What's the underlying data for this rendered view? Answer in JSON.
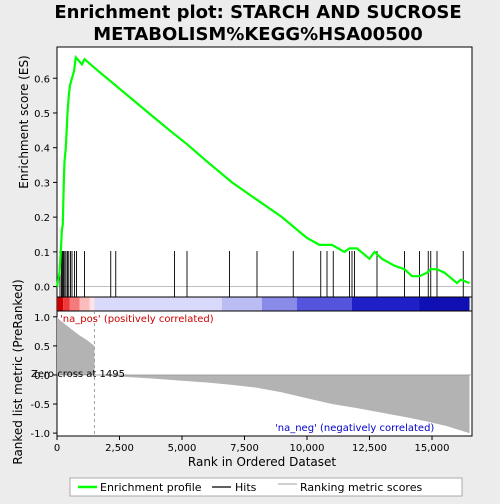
{
  "title_line1": "Enrichment plot: STARCH AND SUCROSE",
  "title_line2": "METABOLISM%KEGG%HSA00500",
  "colors": {
    "enrichment_line": "#00ff00",
    "hit_line": "#000000",
    "metric_fill": "#b3b3b3",
    "pos_label": "#cc0000",
    "neg_label": "#0000cc",
    "panel_bg": "#ffffff",
    "page_bg": "#ececec"
  },
  "chart_data": {
    "type": "line",
    "x_max": 16600,
    "xlabel": "Rank in Ordered Dataset",
    "x_ticks": [
      0,
      2500,
      5000,
      7500,
      10000,
      12500,
      15000
    ],
    "x_tick_labels": [
      "0",
      "2,500",
      "5,000",
      "7,500",
      "10,000",
      "12,500",
      "15,000"
    ],
    "es_panel": {
      "ylabel": "Enrichment score (ES)",
      "ylim": [
        -0.03,
        0.69
      ],
      "y_ticks": [
        0.0,
        0.1,
        0.2,
        0.3,
        0.4,
        0.5,
        0.6
      ],
      "y_tick_labels": [
        "0.0",
        "0.1",
        "0.2",
        "0.3",
        "0.4",
        "0.5",
        "0.6"
      ],
      "grid": false,
      "series": [
        {
          "name": "Enrichment profile",
          "points": [
            [
              0,
              0.0
            ],
            [
              100,
              0.04
            ],
            [
              150,
              0.1
            ],
            [
              190,
              0.16
            ],
            [
              230,
              0.18
            ],
            [
              270,
              0.3
            ],
            [
              300,
              0.36
            ],
            [
              350,
              0.4
            ],
            [
              420,
              0.5
            ],
            [
              470,
              0.55
            ],
            [
              520,
              0.58
            ],
            [
              600,
              0.6
            ],
            [
              680,
              0.62
            ],
            [
              750,
              0.66
            ],
            [
              1000,
              0.64
            ],
            [
              1100,
              0.655
            ],
            [
              1500,
              0.63
            ],
            [
              3000,
              0.54
            ],
            [
              4500,
              0.45
            ],
            [
              5200,
              0.41
            ],
            [
              6000,
              0.36
            ],
            [
              7000,
              0.3
            ],
            [
              8000,
              0.25
            ],
            [
              9000,
              0.2
            ],
            [
              9500,
              0.17
            ],
            [
              10000,
              0.14
            ],
            [
              10500,
              0.12
            ],
            [
              11000,
              0.12
            ],
            [
              11500,
              0.1
            ],
            [
              11700,
              0.11
            ],
            [
              11850,
              0.11
            ],
            [
              12000,
              0.11
            ],
            [
              12500,
              0.08
            ],
            [
              12700,
              0.1
            ],
            [
              13000,
              0.08
            ],
            [
              13500,
              0.06
            ],
            [
              13900,
              0.05
            ],
            [
              14200,
              0.03
            ],
            [
              14500,
              0.03
            ],
            [
              14800,
              0.04
            ],
            [
              14950,
              0.05
            ],
            [
              15200,
              0.05
            ],
            [
              15500,
              0.04
            ],
            [
              16000,
              0.01
            ],
            [
              16150,
              0.02
            ],
            [
              16500,
              0.01
            ]
          ]
        }
      ]
    },
    "hits": [
      120,
      180,
      220,
      260,
      310,
      360,
      420,
      470,
      540,
      600,
      700,
      780,
      1100,
      2150,
      2350,
      4700,
      5200,
      6900,
      8000,
      9450,
      10550,
      10800,
      11050,
      11700,
      11800,
      11900,
      12800,
      13900,
      14500,
      14850,
      14950,
      15200,
      16250
    ],
    "metric_panel": {
      "ylabel": "Ranked list metric (PreRanked)",
      "ylim": [
        -1.05,
        1.1
      ],
      "y_ticks": [
        1.0,
        0.5,
        0.0,
        -0.5,
        -1.0
      ],
      "y_tick_labels": [
        "1.0",
        "0.5",
        "0.0",
        "-0.5",
        "-1.0"
      ],
      "metric_profile": [
        [
          0,
          1.0
        ],
        [
          100,
          0.95
        ],
        [
          300,
          0.88
        ],
        [
          600,
          0.78
        ],
        [
          900,
          0.68
        ],
        [
          1200,
          0.6
        ],
        [
          1495,
          0.5
        ],
        [
          1500,
          0.0
        ],
        [
          2600,
          -0.03
        ],
        [
          3800,
          -0.06
        ],
        [
          5000,
          -0.1
        ],
        [
          6000,
          -0.13
        ],
        [
          7000,
          -0.17
        ],
        [
          8000,
          -0.22
        ],
        [
          9000,
          -0.3
        ],
        [
          10000,
          -0.4
        ],
        [
          11000,
          -0.5
        ],
        [
          12000,
          -0.57
        ],
        [
          13000,
          -0.65
        ],
        [
          14000,
          -0.73
        ],
        [
          14800,
          -0.8
        ],
        [
          15600,
          -0.88
        ],
        [
          16100,
          -0.95
        ],
        [
          16500,
          -1.0
        ]
      ],
      "pos_label": "'na_pos' (positively correlated)",
      "neg_label": "'na_neg' (negatively correlated)",
      "zero_cross_label": "Zero cross at 1495",
      "zero_cross_rank": 1495
    },
    "rank_bar": {
      "segments": [
        {
          "end": 250,
          "color": "#cc0000"
        },
        {
          "end": 500,
          "color": "#ee3a3a"
        },
        {
          "end": 900,
          "color": "#f57a7a"
        },
        {
          "end": 1300,
          "color": "#fbbcbc"
        },
        {
          "end": 1500,
          "color": "#fde3e3"
        },
        {
          "end": 6600,
          "color": "#d9d9fb"
        },
        {
          "end": 8200,
          "color": "#bcbcf5"
        },
        {
          "end": 9600,
          "color": "#8a8ae8"
        },
        {
          "end": 11800,
          "color": "#5454dc"
        },
        {
          "end": 14500,
          "color": "#2020c8"
        },
        {
          "end": 16500,
          "color": "#0f0fb4"
        }
      ]
    },
    "legend": {
      "placement": "bottom",
      "items": [
        {
          "label": "Enrichment profile",
          "kind": "line",
          "color": "#00ff00"
        },
        {
          "label": "Hits",
          "kind": "line",
          "color": "#000000"
        },
        {
          "label": "Ranking metric scores",
          "kind": "line",
          "color": "#b3b3b3"
        }
      ]
    }
  }
}
